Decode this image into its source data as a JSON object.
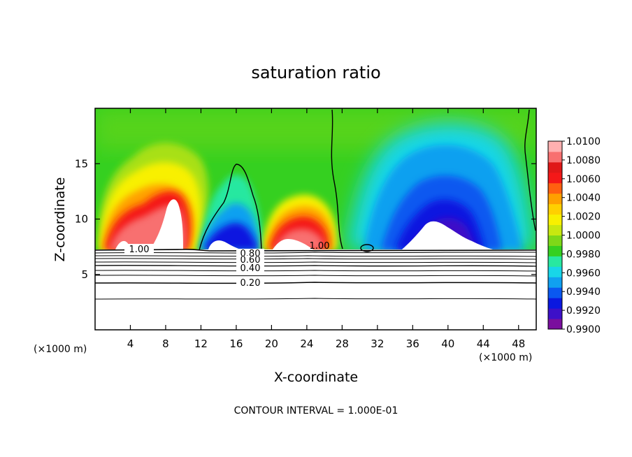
{
  "chart_data": {
    "type": "heatmap",
    "title": "saturation ratio",
    "xlabel": "X-coordinate",
    "ylabel": "Z-coordinate",
    "x_unit_left": "(×1000 m)",
    "x_unit_right": "(×1000 m)",
    "xlim": [
      0,
      50
    ],
    "ylim": [
      0,
      20
    ],
    "xticks": [
      4,
      8,
      12,
      16,
      20,
      24,
      28,
      32,
      36,
      40,
      44,
      48
    ],
    "xtick_labels": [
      "4",
      "8",
      "12",
      "16",
      "20",
      "24",
      "28",
      "32",
      "36",
      "40",
      "44",
      "48"
    ],
    "yticks": [
      5,
      10,
      15
    ],
    "ytick_labels": [
      "5",
      "10",
      "15"
    ],
    "footer": "CONTOUR INTERVAL = 1.000E-01",
    "colorbar": {
      "min": 0.99,
      "max": 1.01,
      "tick_values": [
        1.01,
        1.008,
        1.006,
        1.004,
        1.002,
        1.0,
        0.998,
        0.996,
        0.994,
        0.992,
        0.99
      ],
      "tick_labels": [
        "1.0100",
        "1.0080",
        "1.0060",
        "1.0040",
        "1.0020",
        "1.0000",
        "0.9980",
        "0.9960",
        "0.9940",
        "0.9920",
        "0.9900"
      ],
      "colors": [
        "#7a0f9e",
        "#3d10c8",
        "#0a18e0",
        "#0a58f0",
        "#10a0f0",
        "#18d6e8",
        "#28e8a0",
        "#35d020",
        "#7ed818",
        "#c8e810",
        "#f8f000",
        "#ffd000",
        "#ffa000",
        "#ff6010",
        "#f41818",
        "#e01818",
        "#f87070",
        "#ffb0b0"
      ]
    },
    "contour_labels": [
      "1.00",
      "0.80",
      "0.60",
      "0.40",
      "0.20",
      "1.00"
    ],
    "features": [
      {
        "name": "supersaturated plume",
        "x_center": 7.5,
        "z_top": 14.5,
        "peak": 1.01
      },
      {
        "name": "subsaturated plume",
        "x_center": 16,
        "z_top": 15,
        "min": 0.992
      },
      {
        "name": "supersaturated plume",
        "x_center": 23,
        "z_top": 13,
        "peak": 1.01
      },
      {
        "name": "subsaturated region",
        "x_center": 38,
        "z_top": 16.5,
        "min": 0.99
      }
    ],
    "white_region_top_z": 7.3,
    "background_value": 1.0
  }
}
